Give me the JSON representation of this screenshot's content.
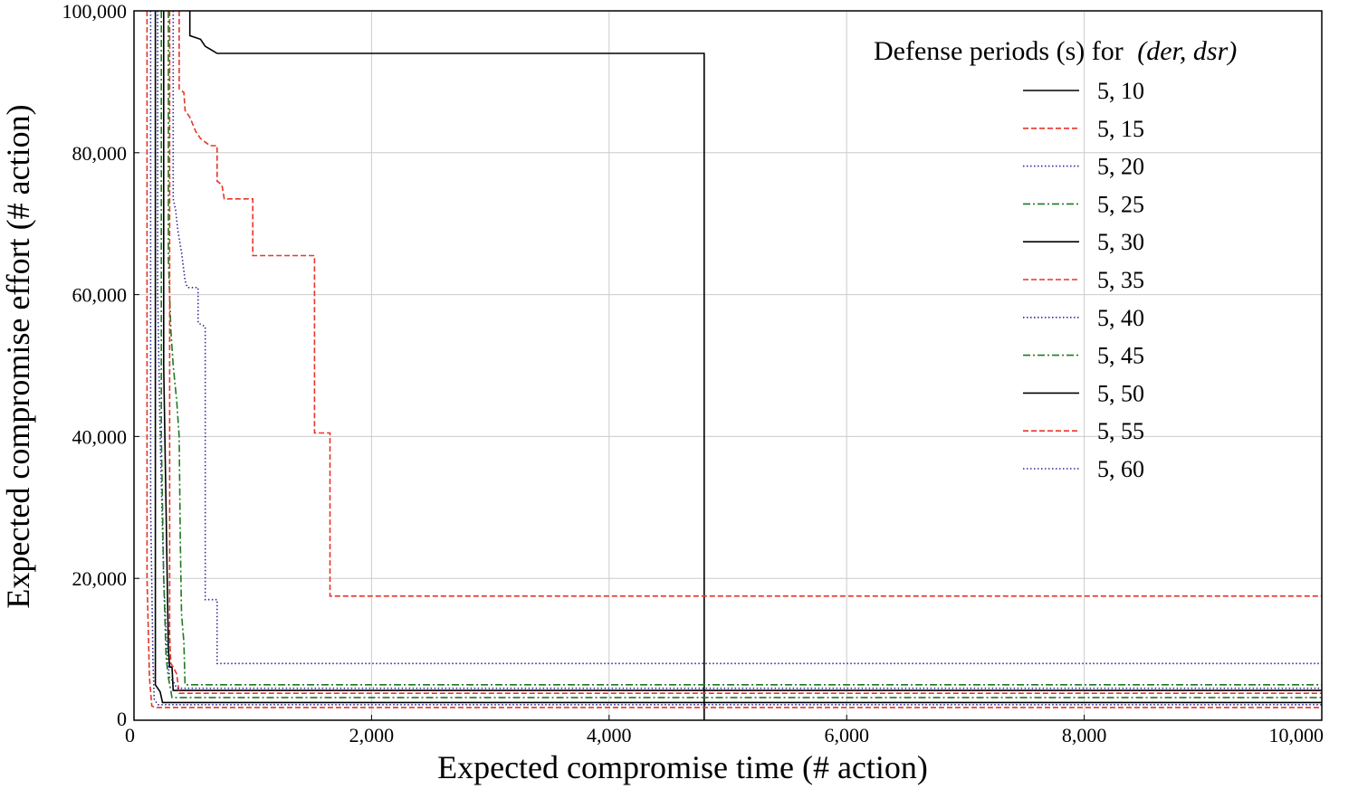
{
  "chart_data": {
    "type": "line",
    "title": "",
    "xlabel": "Expected compromise time (# action)",
    "ylabel": "Expected compromise effort (# action)",
    "xlim": [
      0,
      10000
    ],
    "ylim": [
      0,
      100000
    ],
    "xticks": [
      "0",
      "2,000",
      "4,000",
      "6,000",
      "8,000",
      "10,000"
    ],
    "yticks": [
      "0",
      "20,000",
      "40,000",
      "60,000",
      "80,000",
      "100,000"
    ],
    "grid": true,
    "legend": {
      "title_prefix": "Defense periods (s) for",
      "title_math": "(der, dsr)",
      "placement": "top-right"
    },
    "series": [
      {
        "name": "5, 10",
        "color": "#000000",
        "dash": "solid",
        "points": [
          [
            470,
            100000
          ],
          [
            470,
            96500
          ],
          [
            560,
            96000
          ],
          [
            600,
            95000
          ],
          [
            650,
            94500
          ],
          [
            700,
            94000
          ],
          [
            4800,
            94000
          ],
          [
            4800,
            0
          ]
        ]
      },
      {
        "name": "5, 15",
        "color": "#e8352a",
        "dash": "dashed",
        "points": [
          [
            380,
            100000
          ],
          [
            380,
            89000
          ],
          [
            420,
            88500
          ],
          [
            430,
            86000
          ],
          [
            470,
            85000
          ],
          [
            520,
            83000
          ],
          [
            560,
            82000
          ],
          [
            640,
            81000
          ],
          [
            700,
            81000
          ],
          [
            700,
            76000
          ],
          [
            740,
            75500
          ],
          [
            760,
            73500
          ],
          [
            1000,
            73500
          ],
          [
            1000,
            65500
          ],
          [
            1520,
            65500
          ],
          [
            1520,
            40500
          ],
          [
            1650,
            40500
          ],
          [
            1650,
            17500
          ],
          [
            1700,
            17500
          ],
          [
            10000,
            17500
          ]
        ]
      },
      {
        "name": "5, 20",
        "color": "#2b2b99",
        "dash": "dotted",
        "points": [
          [
            330,
            100000
          ],
          [
            330,
            73500
          ],
          [
            350,
            72000
          ],
          [
            370,
            69000
          ],
          [
            400,
            66000
          ],
          [
            430,
            62000
          ],
          [
            450,
            61000
          ],
          [
            540,
            61000
          ],
          [
            540,
            56000
          ],
          [
            600,
            55500
          ],
          [
            600,
            17000
          ],
          [
            700,
            17000
          ],
          [
            700,
            8000
          ],
          [
            800,
            8000
          ],
          [
            10000,
            8000
          ]
        ]
      },
      {
        "name": "5, 25",
        "color": "#1e7a1e",
        "dash": "dashdot",
        "points": [
          [
            290,
            100000
          ],
          [
            290,
            65000
          ],
          [
            310,
            55000
          ],
          [
            330,
            50000
          ],
          [
            360,
            45000
          ],
          [
            380,
            40000
          ],
          [
            390,
            25000
          ],
          [
            400,
            15000
          ],
          [
            420,
            11000
          ],
          [
            430,
            5000
          ],
          [
            10000,
            5000
          ]
        ]
      },
      {
        "name": "5, 30",
        "color": "#000000",
        "dash": "solid",
        "points": [
          [
            250,
            100000
          ],
          [
            250,
            50000
          ],
          [
            270,
            30000
          ],
          [
            290,
            10000
          ],
          [
            300,
            7500
          ],
          [
            320,
            7500
          ],
          [
            330,
            4200
          ],
          [
            10000,
            4200
          ]
        ]
      },
      {
        "name": "5, 35",
        "color": "#e8352a",
        "dash": "dashed",
        "points": [
          [
            300,
            100000
          ],
          [
            300,
            12000
          ],
          [
            310,
            8000
          ],
          [
            330,
            7500
          ],
          [
            360,
            6500
          ],
          [
            380,
            3800
          ],
          [
            10000,
            3800
          ]
        ]
      },
      {
        "name": "5, 40",
        "color": "#2b2b99",
        "dash": "dotted",
        "points": [
          [
            200,
            100000
          ],
          [
            200,
            60000
          ],
          [
            220,
            40000
          ],
          [
            250,
            20000
          ],
          [
            280,
            9000
          ],
          [
            300,
            6000
          ],
          [
            330,
            5500
          ],
          [
            360,
            4500
          ],
          [
            10000,
            4500
          ]
        ]
      },
      {
        "name": "5, 45",
        "color": "#1e7a1e",
        "dash": "dashdot",
        "points": [
          [
            230,
            100000
          ],
          [
            230,
            40000
          ],
          [
            250,
            20000
          ],
          [
            270,
            9000
          ],
          [
            290,
            6000
          ],
          [
            320,
            3200
          ],
          [
            10000,
            3200
          ]
        ]
      },
      {
        "name": "5, 50",
        "color": "#000000",
        "dash": "solid",
        "points": [
          [
            180,
            100000
          ],
          [
            180,
            5000
          ],
          [
            220,
            4000
          ],
          [
            240,
            2500
          ],
          [
            10000,
            2500
          ]
        ]
      },
      {
        "name": "5, 55",
        "color": "#e8352a",
        "dash": "dashed",
        "points": [
          [
            110,
            100000
          ],
          [
            110,
            20000
          ],
          [
            130,
            6000
          ],
          [
            150,
            2000
          ],
          [
            180,
            1800
          ],
          [
            10000,
            1800
          ]
        ]
      },
      {
        "name": "5, 60",
        "color": "#2b2b99",
        "dash": "dotted",
        "points": [
          [
            140,
            100000
          ],
          [
            140,
            30000
          ],
          [
            160,
            8000
          ],
          [
            170,
            3000
          ],
          [
            200,
            2200
          ],
          [
            10000,
            2200
          ]
        ]
      }
    ]
  }
}
